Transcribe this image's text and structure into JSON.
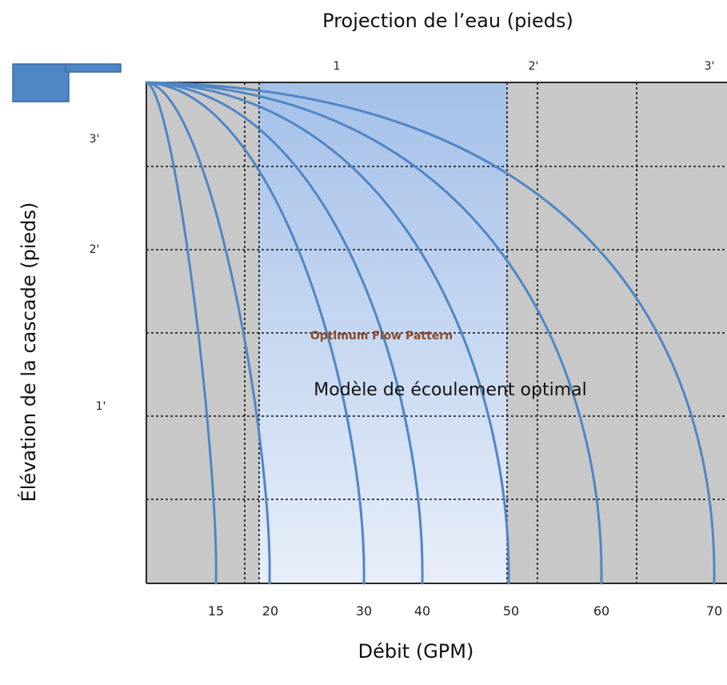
{
  "chart_data": {
    "type": "line",
    "title": "",
    "top_axis_title": "Projection de l’eau (pieds)",
    "xlabel": "Débit (GPM)",
    "ylabel": "Élévation de la cascade (pieds)",
    "top_ticks": [
      "1",
      "2'",
      "3'"
    ],
    "left_ticks": [
      "3'",
      "2'",
      "1'"
    ],
    "flow_ticks": [
      "15",
      "20",
      "30",
      "40",
      "50",
      "60",
      "70"
    ],
    "optimum_label_en": "Optimum Flow Pattern",
    "optimum_label_fr": "Modèle de écoulement optimal",
    "colors": {
      "plot_background": "#c8c8c8",
      "optimum_band_top": "#a4c0e8",
      "optimum_band_bottom": "#e8eef9",
      "curve": "#4f86c6",
      "spillway": "#4f86c6"
    },
    "series": [
      {
        "flow": "15"
      },
      {
        "flow": "20"
      },
      {
        "flow": "30"
      },
      {
        "flow": "40"
      },
      {
        "flow": "50"
      },
      {
        "flow": "60"
      },
      {
        "flow": "70"
      }
    ]
  }
}
